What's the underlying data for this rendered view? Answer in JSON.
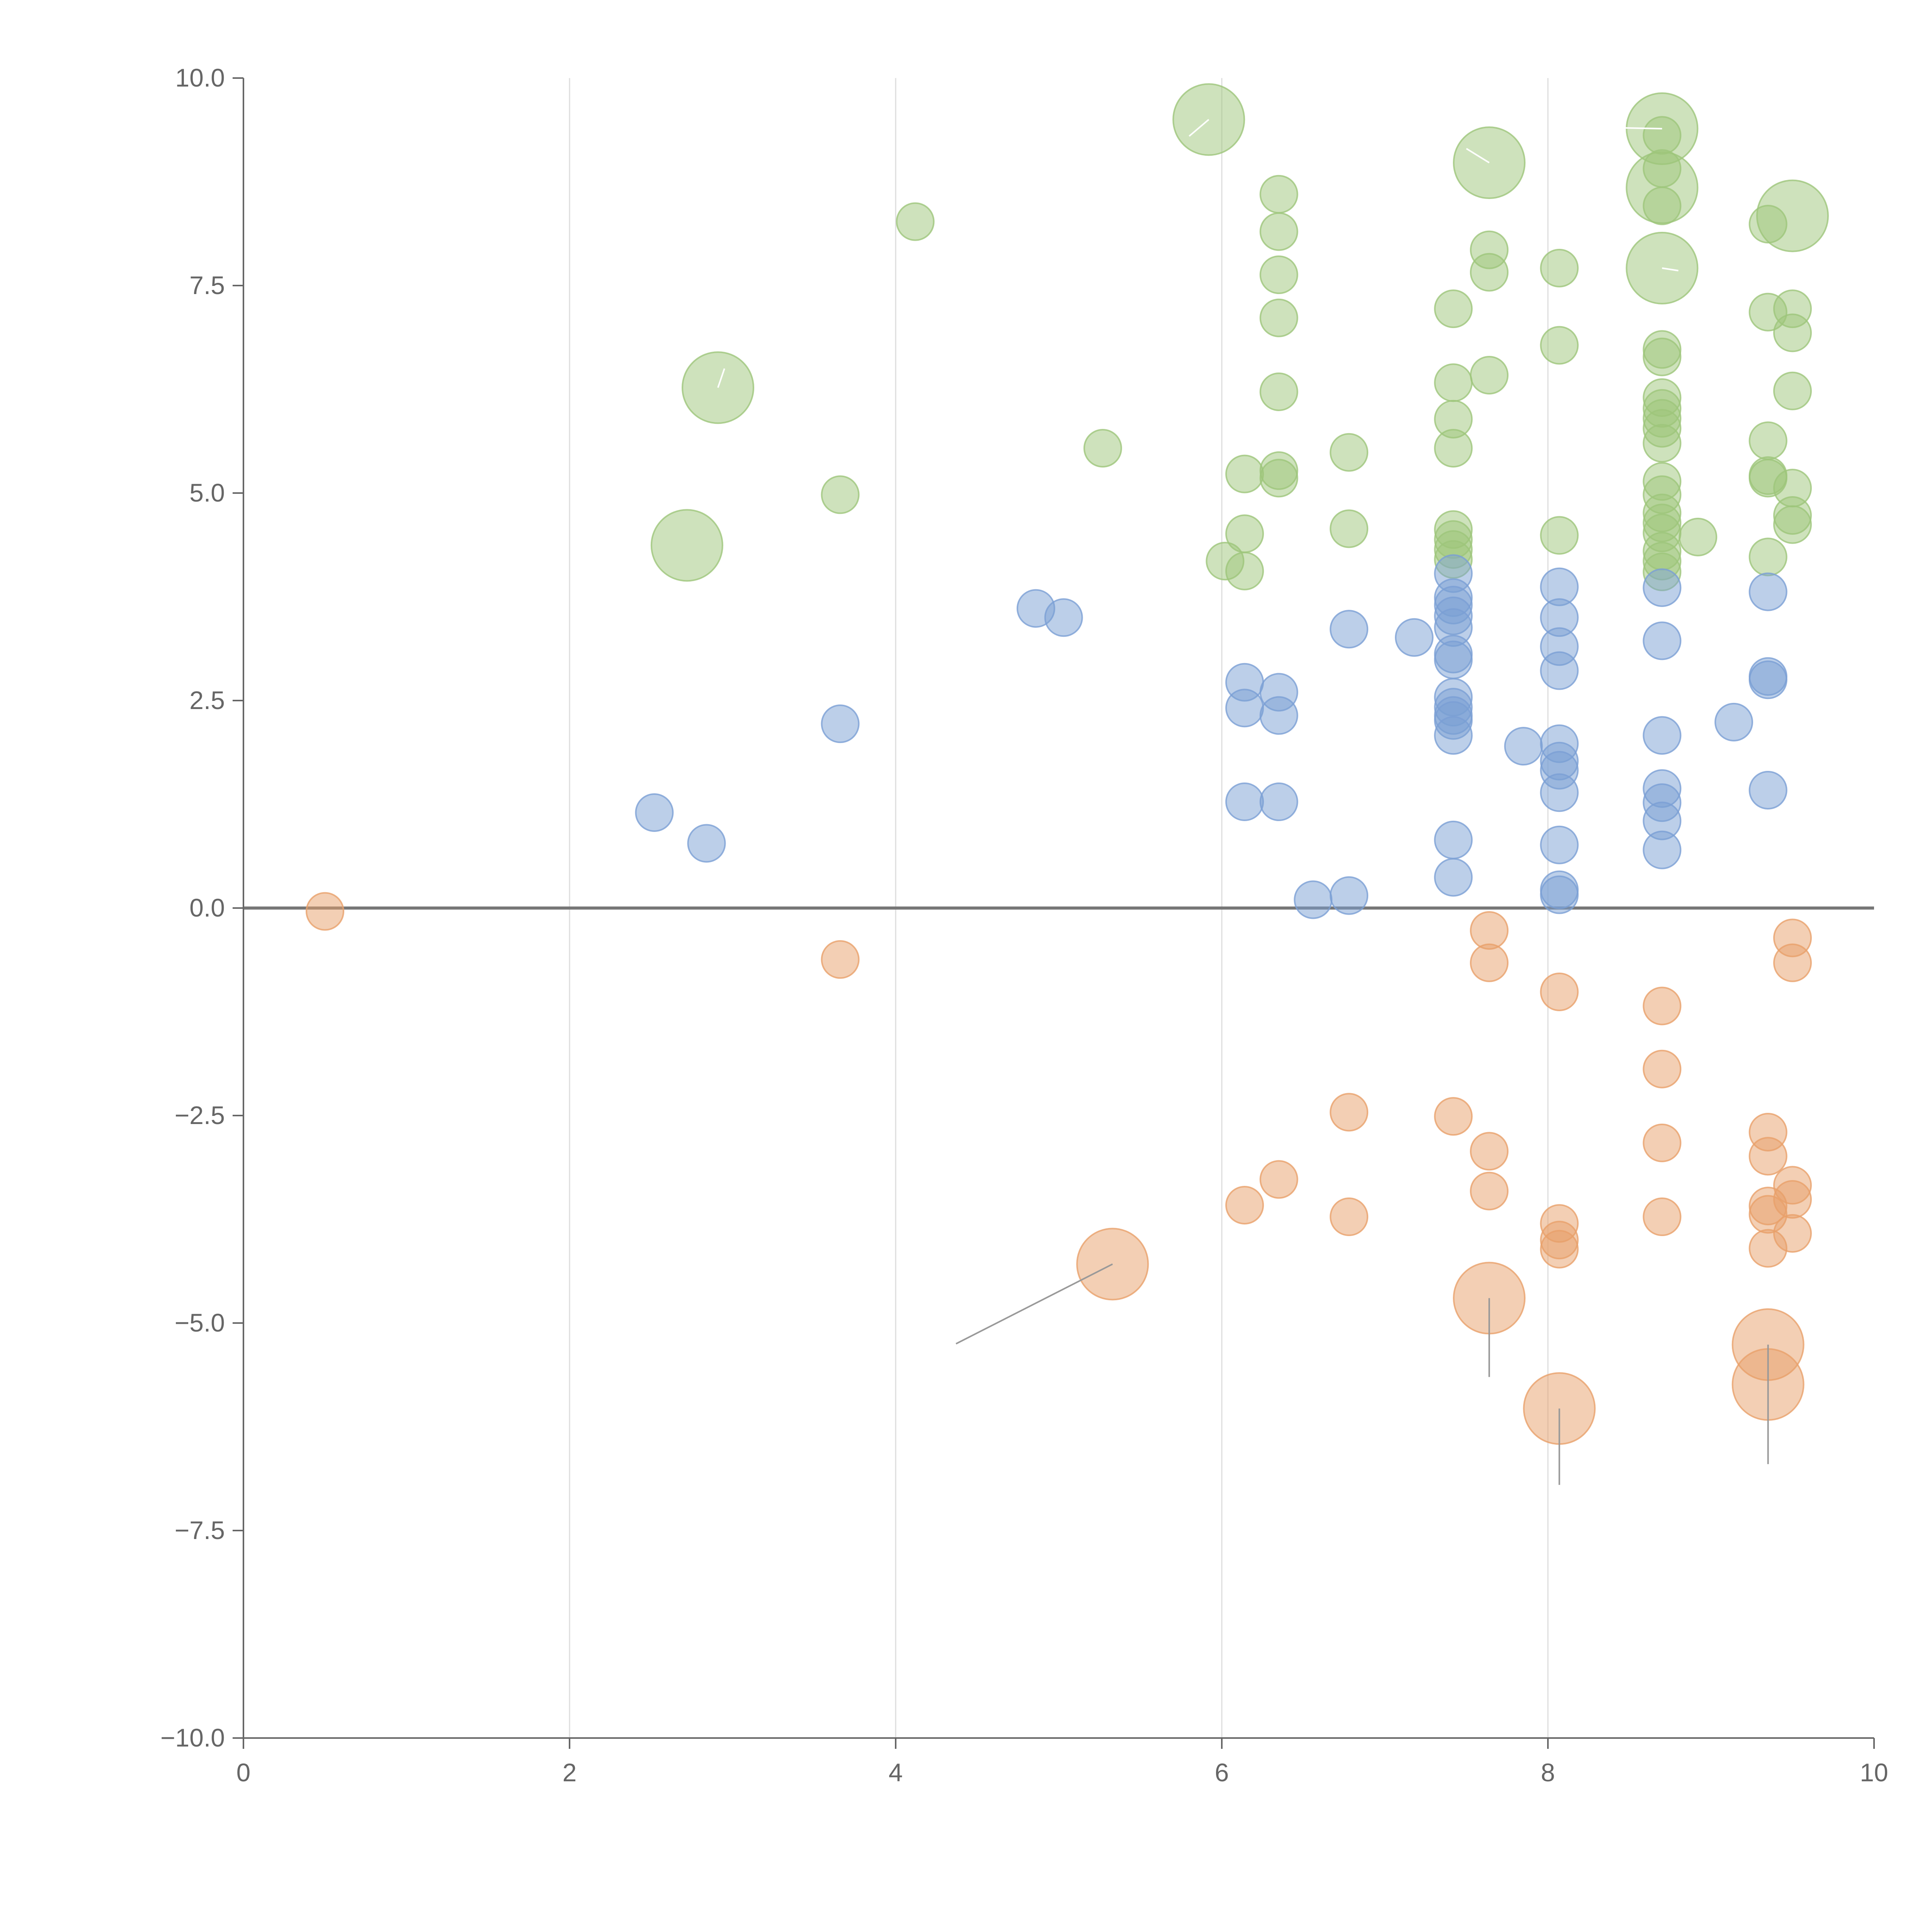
{
  "chart_data": {
    "type": "scatter",
    "title": "",
    "xlabel": "",
    "ylabel": "",
    "xlim": [
      0,
      10
    ],
    "ylim": [
      -10,
      10
    ],
    "x_ticks": [
      "0",
      "2",
      "4",
      "6",
      "8",
      "10"
    ],
    "y_ticks": [
      "10.0",
      "7.5",
      "5.0",
      "2.5",
      "0.0",
      "−2.5",
      "−5.0",
      "−7.5",
      "−10.0"
    ],
    "x_tick_values": [
      0,
      2,
      4,
      6,
      8,
      10
    ],
    "y_tick_values": [
      10,
      7.5,
      5,
      2.5,
      0,
      -2.5,
      -5,
      -7.5,
      -10
    ],
    "grid": "vertical",
    "reference_line_y": 0,
    "colors": {
      "green": "#9dc57a",
      "blue": "#7a9fd4",
      "orange": "#e8a06a",
      "axis": "#666666",
      "grid": "#dddddd"
    },
    "series": [
      {
        "color": "#9dc57a",
        "points": [
          [
            5.92,
            9.5,
            3
          ],
          [
            4.12,
            8.27,
            1
          ],
          [
            2.91,
            6.27,
            3
          ],
          [
            2.72,
            4.37,
            3
          ],
          [
            3.66,
            4.98,
            1
          ],
          [
            5.27,
            5.54,
            1
          ],
          [
            6.35,
            8.6,
            1
          ],
          [
            6.35,
            8.15,
            1
          ],
          [
            6.35,
            7.63,
            1
          ],
          [
            6.35,
            7.11,
            1
          ],
          [
            6.35,
            6.22,
            1
          ],
          [
            6.35,
            5.27,
            1
          ],
          [
            6.35,
            5.18,
            1
          ],
          [
            6.14,
            5.23,
            1
          ],
          [
            6.14,
            4.51,
            1
          ],
          [
            6.02,
            4.18,
            1
          ],
          [
            6.14,
            4.06,
            1
          ],
          [
            6.78,
            5.49,
            1
          ],
          [
            6.78,
            4.57,
            1
          ],
          [
            7.64,
            8.98,
            3
          ],
          [
            7.64,
            7.93,
            1
          ],
          [
            7.64,
            7.66,
            1
          ],
          [
            7.64,
            6.42,
            1
          ],
          [
            7.42,
            7.22,
            1
          ],
          [
            7.42,
            6.33,
            1
          ],
          [
            7.42,
            5.89,
            1
          ],
          [
            7.42,
            5.54,
            1
          ],
          [
            7.42,
            4.56,
            1
          ],
          [
            7.42,
            4.44,
            1
          ],
          [
            7.42,
            4.32,
            1
          ],
          [
            7.42,
            4.2,
            1
          ],
          [
            8.07,
            7.71,
            1
          ],
          [
            8.07,
            6.78,
            1
          ],
          [
            8.07,
            4.49,
            1
          ],
          [
            8.7,
            9.39,
            3
          ],
          [
            8.7,
            8.68,
            3
          ],
          [
            8.7,
            7.71,
            3
          ],
          [
            8.7,
            9.31,
            1
          ],
          [
            8.7,
            8.91,
            1
          ],
          [
            8.7,
            8.46,
            1
          ],
          [
            8.7,
            6.73,
            1
          ],
          [
            8.7,
            6.64,
            1
          ],
          [
            8.7,
            6.15,
            1
          ],
          [
            8.7,
            6.02,
            1
          ],
          [
            8.7,
            5.9,
            1
          ],
          [
            8.7,
            5.78,
            1
          ],
          [
            8.7,
            5.6,
            1
          ],
          [
            8.7,
            5.14,
            1
          ],
          [
            8.7,
            4.98,
            1
          ],
          [
            8.7,
            4.76,
            1
          ],
          [
            8.7,
            4.64,
            1
          ],
          [
            8.7,
            4.52,
            1
          ],
          [
            8.7,
            4.3,
            1
          ],
          [
            8.7,
            4.18,
            1
          ],
          [
            8.7,
            4.05,
            1
          ],
          [
            8.92,
            4.47,
            1
          ],
          [
            9.5,
            8.34,
            3
          ],
          [
            9.35,
            8.24,
            1
          ],
          [
            9.35,
            7.18,
            1
          ],
          [
            9.5,
            7.22,
            1
          ],
          [
            9.5,
            6.93,
            1
          ],
          [
            9.5,
            6.23,
            1
          ],
          [
            9.35,
            5.63,
            1
          ],
          [
            9.35,
            5.21,
            1
          ],
          [
            9.35,
            5.18,
            1
          ],
          [
            9.5,
            5.06,
            1
          ],
          [
            9.5,
            4.73,
            1
          ],
          [
            9.5,
            4.62,
            1
          ],
          [
            9.35,
            4.23,
            1
          ]
        ]
      },
      {
        "color": "#7a9fd4",
        "points": [
          [
            2.52,
            1.15,
            1
          ],
          [
            2.84,
            0.78,
            1
          ],
          [
            3.66,
            2.22,
            1
          ],
          [
            4.86,
            3.61,
            1
          ],
          [
            5.03,
            3.5,
            1
          ],
          [
            6.14,
            2.72,
            1
          ],
          [
            6.14,
            2.41,
            1
          ],
          [
            6.14,
            1.28,
            1
          ],
          [
            6.35,
            2.6,
            1
          ],
          [
            6.35,
            2.32,
            1
          ],
          [
            6.35,
            1.28,
            1
          ],
          [
            6.56,
            0.1,
            1
          ],
          [
            6.78,
            0.15,
            1
          ],
          [
            6.78,
            3.36,
            1
          ],
          [
            7.18,
            3.26,
            1
          ],
          [
            7.42,
            4.03,
            1
          ],
          [
            7.42,
            3.74,
            1
          ],
          [
            7.42,
            3.65,
            1
          ],
          [
            7.42,
            3.52,
            1
          ],
          [
            7.42,
            3.38,
            1
          ],
          [
            7.42,
            3.06,
            1
          ],
          [
            7.42,
            2.99,
            1
          ],
          [
            7.42,
            2.54,
            1
          ],
          [
            7.42,
            2.42,
            1
          ],
          [
            7.42,
            2.32,
            1
          ],
          [
            7.42,
            2.26,
            1
          ],
          [
            7.42,
            2.08,
            1
          ],
          [
            7.42,
            0.82,
            1
          ],
          [
            7.42,
            0.37,
            1
          ],
          [
            7.85,
            1.95,
            1
          ],
          [
            8.07,
            3.87,
            1
          ],
          [
            8.07,
            3.5,
            1
          ],
          [
            8.07,
            3.15,
            1
          ],
          [
            8.07,
            2.86,
            1
          ],
          [
            8.07,
            1.98,
            1
          ],
          [
            8.07,
            1.77,
            1
          ],
          [
            8.07,
            1.66,
            1
          ],
          [
            8.07,
            1.39,
            1
          ],
          [
            8.07,
            0.76,
            1
          ],
          [
            8.07,
            0.22,
            1
          ],
          [
            8.07,
            0.16,
            1
          ],
          [
            8.7,
            3.86,
            1
          ],
          [
            8.7,
            3.22,
            1
          ],
          [
            8.7,
            2.08,
            1
          ],
          [
            8.7,
            1.44,
            1
          ],
          [
            8.7,
            1.27,
            1
          ],
          [
            8.7,
            1.05,
            1
          ],
          [
            8.7,
            0.7,
            1
          ],
          [
            9.14,
            2.24,
            1
          ],
          [
            9.35,
            3.81,
            1
          ],
          [
            9.35,
            2.79,
            1
          ],
          [
            9.35,
            2.75,
            1
          ],
          [
            9.35,
            1.42,
            1
          ]
        ]
      },
      {
        "color": "#e8a06a",
        "points": [
          [
            0.5,
            -0.04,
            1
          ],
          [
            3.66,
            -0.62,
            1
          ],
          [
            5.33,
            -4.29,
            3
          ],
          [
            6.14,
            -3.58,
            1
          ],
          [
            6.35,
            -3.27,
            1
          ],
          [
            6.78,
            -2.46,
            1
          ],
          [
            6.78,
            -3.72,
            1
          ],
          [
            7.42,
            -2.51,
            1
          ],
          [
            7.64,
            -0.27,
            1
          ],
          [
            7.64,
            -0.66,
            1
          ],
          [
            7.64,
            -2.93,
            1
          ],
          [
            7.64,
            -3.41,
            1
          ],
          [
            7.64,
            -4.7,
            3
          ],
          [
            8.07,
            -1.01,
            1
          ],
          [
            8.07,
            -3.8,
            1
          ],
          [
            8.07,
            -4.0,
            1
          ],
          [
            8.07,
            -4.11,
            1
          ],
          [
            8.07,
            -6.03,
            3
          ],
          [
            8.7,
            -1.18,
            1
          ],
          [
            8.7,
            -1.94,
            1
          ],
          [
            8.7,
            -2.83,
            1
          ],
          [
            8.7,
            -3.72,
            1
          ],
          [
            9.35,
            -2.7,
            1
          ],
          [
            9.35,
            -2.99,
            1
          ],
          [
            9.35,
            -3.59,
            1
          ],
          [
            9.35,
            -3.69,
            1
          ],
          [
            9.35,
            -4.1,
            1
          ],
          [
            9.35,
            -5.26,
            3
          ],
          [
            9.35,
            -5.74,
            3
          ],
          [
            9.5,
            -0.36,
            1
          ],
          [
            9.5,
            -0.66,
            1
          ],
          [
            9.5,
            -3.34,
            1
          ],
          [
            9.5,
            -3.51,
            1
          ],
          [
            9.5,
            -3.92,
            1
          ]
        ]
      }
    ],
    "leader_lines": [
      {
        "color": "#999999",
        "from": [
          5.33,
          -4.29
        ],
        "to": [
          4.37,
          -5.25
        ]
      },
      {
        "color": "#999999",
        "from": [
          7.64,
          -4.7
        ],
        "to": [
          7.64,
          -5.65
        ]
      },
      {
        "color": "#999999",
        "from": [
          8.07,
          -6.03
        ],
        "to": [
          8.07,
          -6.95
        ]
      },
      {
        "color": "#999999",
        "from": [
          9.35,
          -5.26
        ],
        "to": [
          9.35,
          -6.7
        ]
      },
      {
        "color": "#ffffff",
        "from": [
          5.92,
          9.5
        ],
        "to": [
          5.8,
          9.3
        ]
      },
      {
        "color": "#ffffff",
        "from": [
          7.64,
          8.98
        ],
        "to": [
          7.5,
          9.15
        ]
      },
      {
        "color": "#ffffff",
        "from": [
          8.7,
          9.39
        ],
        "to": [
          8.45,
          9.4
        ]
      },
      {
        "color": "#ffffff",
        "from": [
          2.91,
          6.27
        ],
        "to": [
          2.95,
          6.5
        ]
      },
      {
        "color": "#ffffff",
        "from": [
          8.7,
          7.71
        ],
        "to": [
          8.8,
          7.68
        ]
      }
    ]
  }
}
